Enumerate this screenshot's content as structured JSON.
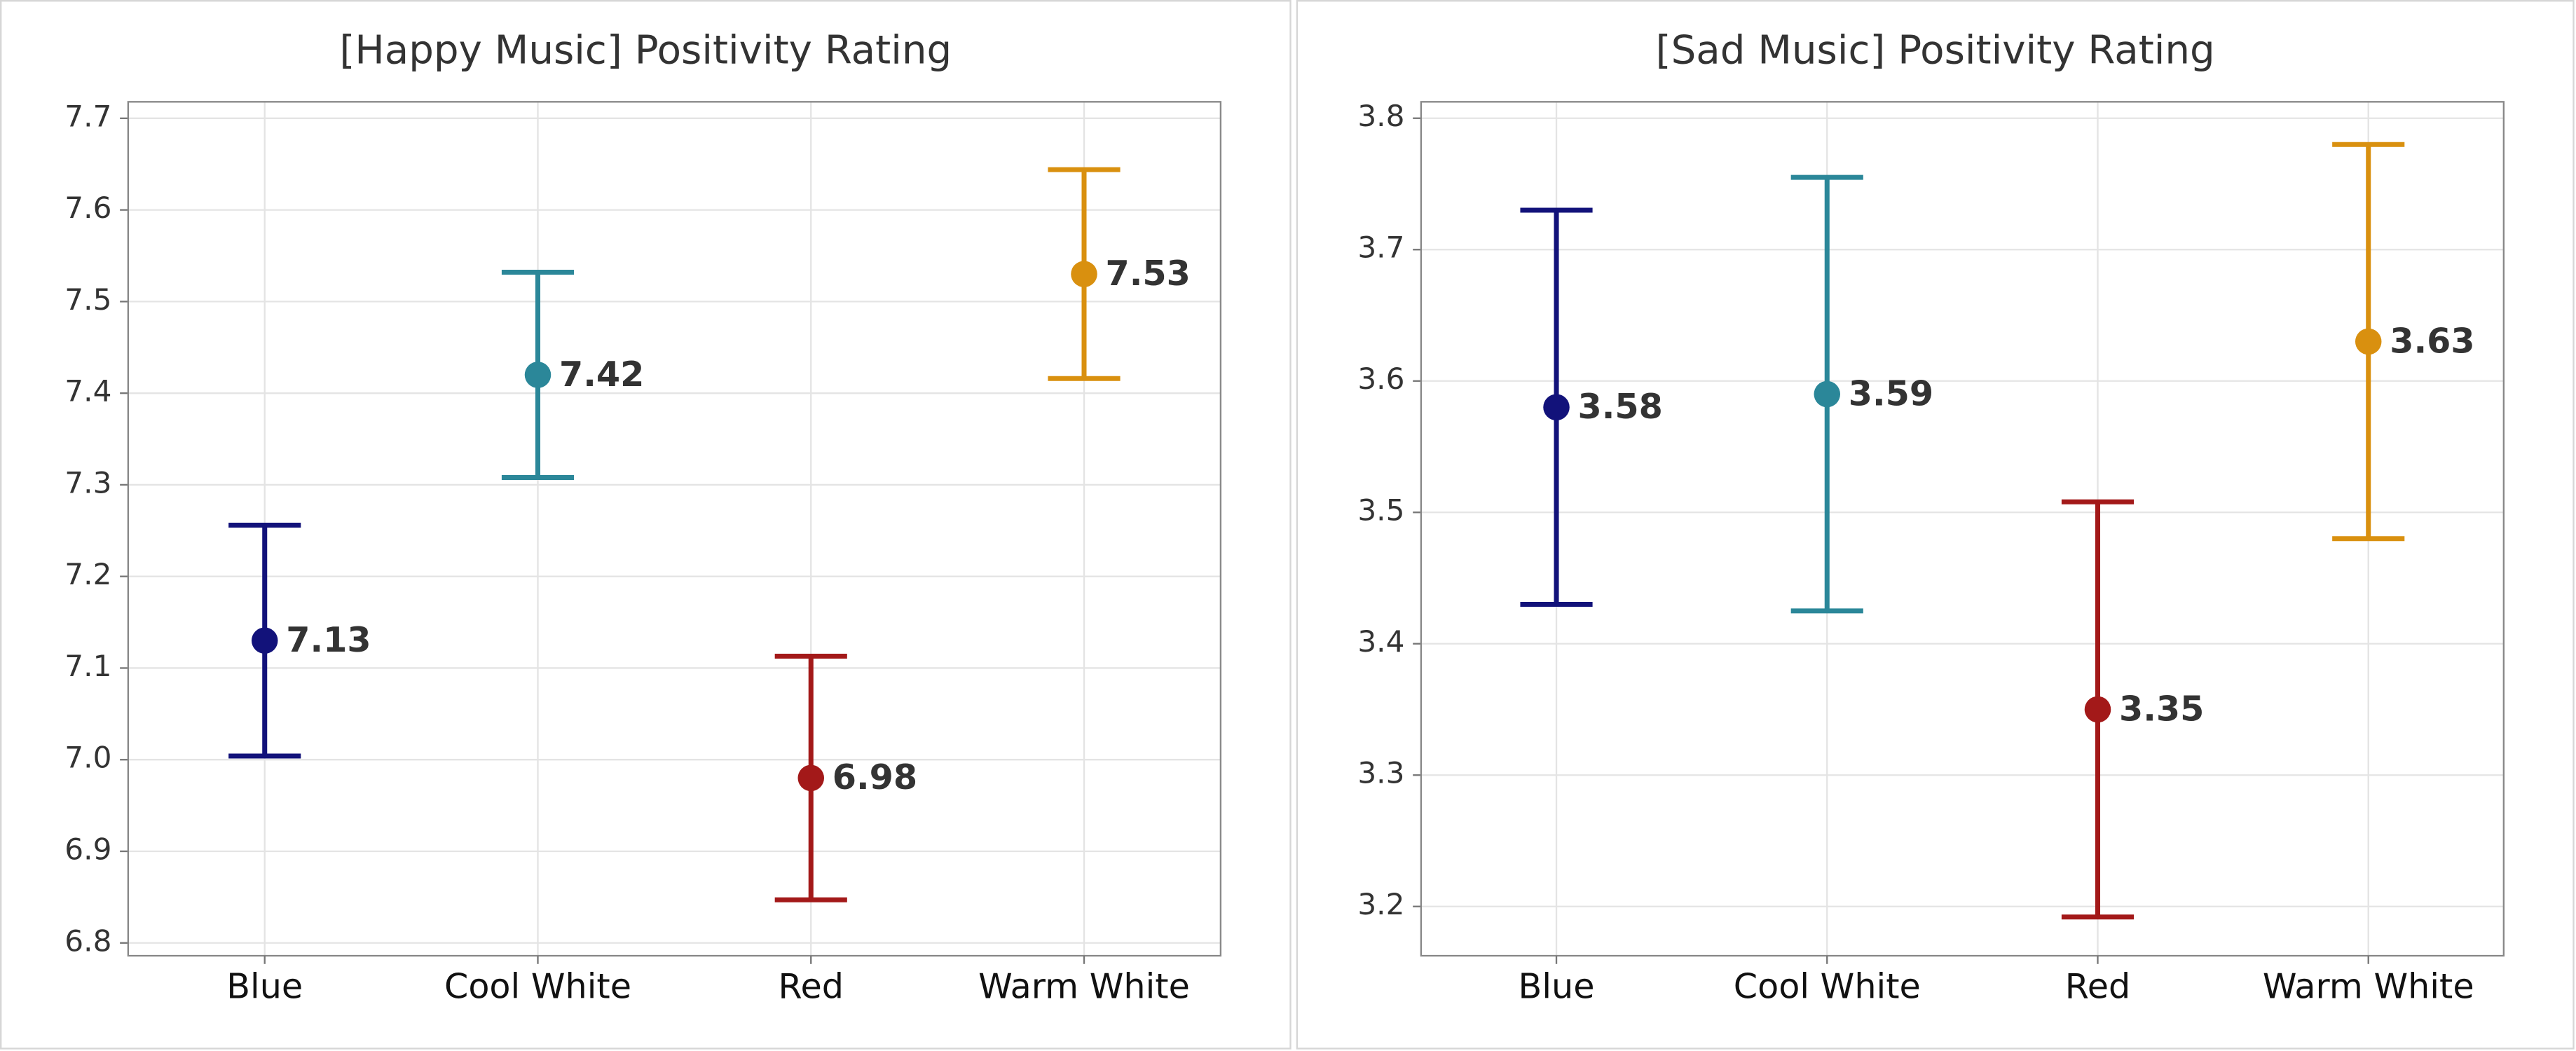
{
  "chart_data": [
    {
      "type": "errorbar",
      "title": "[Happy Music] Positivity Rating",
      "categories": [
        "Blue",
        "Cool White",
        "Red",
        "Warm White"
      ],
      "values": [
        7.13,
        7.42,
        6.98,
        7.53
      ],
      "errors": [
        0.126,
        0.112,
        0.133,
        0.114
      ],
      "colors": [
        "#12127a",
        "#2b8799",
        "#a31919",
        "#d9900f"
      ],
      "ylim": [
        6.786,
        7.718
      ],
      "yticks": [
        6.8,
        6.9,
        {
          "value": 7,
          "label": "7.0"
        },
        7.1,
        7.2,
        7.3,
        7.4,
        7.5,
        7.6,
        7.7
      ],
      "grid": true
    },
    {
      "type": "errorbar",
      "title": "[Sad Music] Positivity Rating",
      "categories": [
        "Blue",
        "Cool White",
        "Red",
        "Warm White"
      ],
      "values": [
        3.58,
        3.59,
        3.35,
        3.63
      ],
      "errors": [
        0.15,
        0.165,
        0.158,
        0.15
      ],
      "colors": [
        "#12127a",
        "#2b8799",
        "#a31919",
        "#d9900f"
      ],
      "ylim": [
        3.1625,
        3.8125
      ],
      "yticks": [
        3.2,
        3.3,
        3.4,
        3.5,
        3.6,
        3.7,
        3.8
      ],
      "grid": true
    }
  ]
}
